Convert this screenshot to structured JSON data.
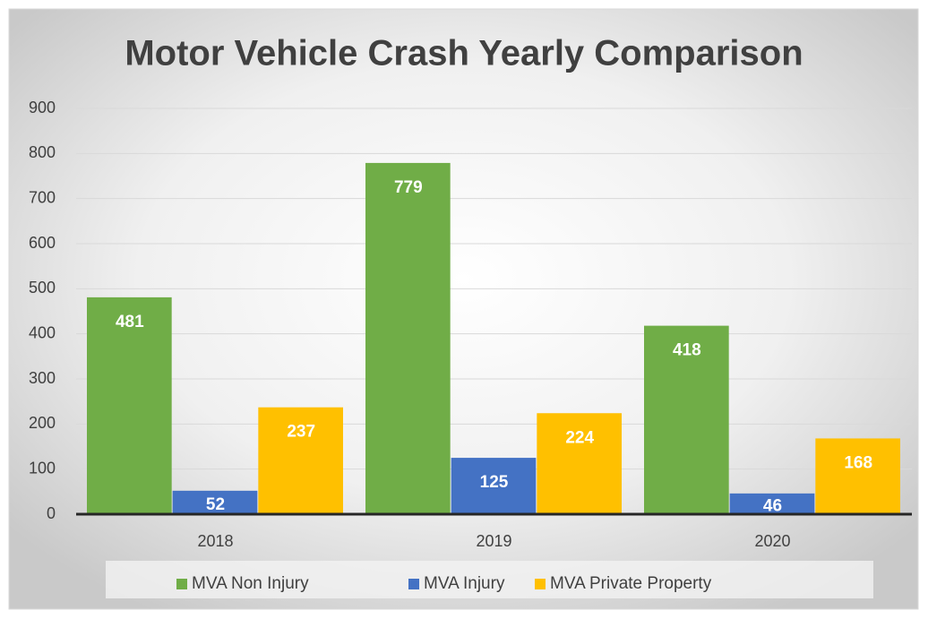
{
  "chart_data": {
    "type": "bar",
    "title": "Motor Vehicle Crash Yearly Comparison",
    "categories": [
      "2018",
      "2019",
      "2020"
    ],
    "series": [
      {
        "name": "MVA Non Injury",
        "color": "#70ad47",
        "values": [
          481,
          779,
          418
        ]
      },
      {
        "name": "MVA Injury",
        "color": "#4472c4",
        "values": [
          52,
          125,
          46
        ]
      },
      {
        "name": "MVA Private Property",
        "color": "#ffc000",
        "values": [
          237,
          224,
          168
        ]
      }
    ],
    "ylim": [
      0,
      900
    ],
    "yticks": [
      0,
      100,
      200,
      300,
      400,
      500,
      600,
      700,
      800,
      900
    ],
    "grid": true,
    "legend": "bottom"
  }
}
